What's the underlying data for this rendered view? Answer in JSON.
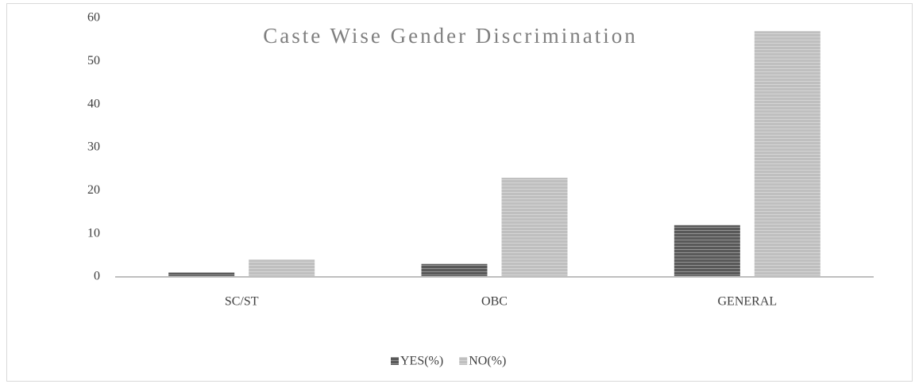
{
  "chart_data": {
    "type": "bar",
    "title": "Caste Wise Gender Discrimination",
    "categories": [
      "SC/ST",
      "OBC",
      "GENERAL"
    ],
    "series": [
      {
        "name": "YES(%)",
        "color": "#595959",
        "values": [
          1,
          3,
          12
        ]
      },
      {
        "name": "NO(%)",
        "color": "#bfbfbf",
        "values": [
          4,
          23,
          57
        ]
      }
    ],
    "ylim": [
      0,
      60
    ],
    "yticks": [
      0,
      10,
      20,
      30,
      40,
      50,
      60
    ],
    "grid": false,
    "legend": "bottom"
  }
}
